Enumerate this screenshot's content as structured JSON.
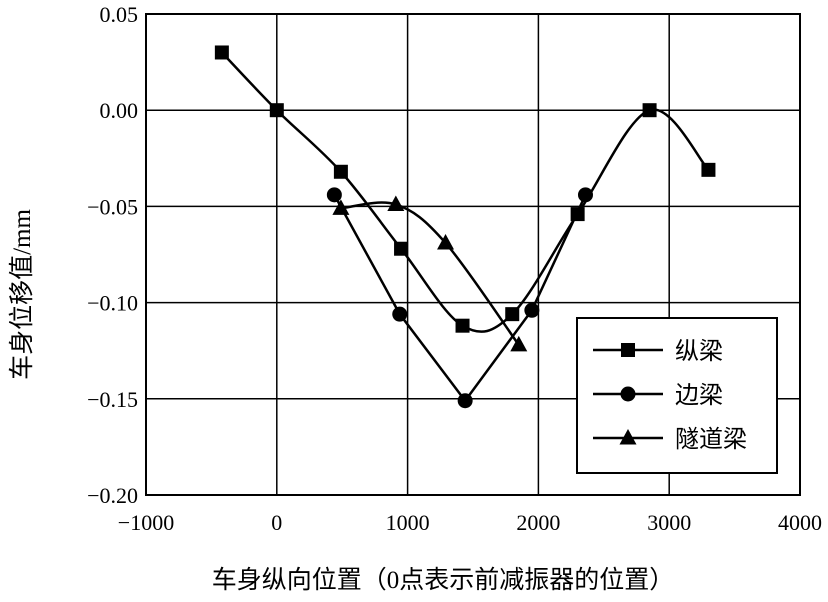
{
  "chart_data": {
    "type": "line",
    "title": "",
    "xlabel": "车身纵向位置（0点表示前减振器的位置）",
    "ylabel": "车身位移值/mm",
    "xlim": [
      -1000,
      4000
    ],
    "ylim": [
      -0.2,
      0.05
    ],
    "xticks": [
      -1000,
      0,
      1000,
      2000,
      3000,
      4000
    ],
    "yticks": [
      0.05,
      0.0,
      -0.05,
      -0.1,
      -0.15,
      -0.2
    ],
    "xtick_labels": [
      "−1000",
      "0",
      "1000",
      "2000",
      "3000",
      "4000"
    ],
    "ytick_labels": [
      "0.05",
      "0.00",
      "−0.05",
      "−0.10",
      "−0.15",
      "−0.20"
    ],
    "grid": true,
    "legend_position": "bottom-right",
    "series": [
      {
        "name": "纵梁",
        "marker": "square",
        "x": [
          -420,
          0,
          490,
          950,
          1420,
          1800,
          2300,
          2850,
          3300
        ],
        "y": [
          0.03,
          0.0,
          -0.032,
          -0.072,
          -0.112,
          -0.106,
          -0.054,
          0.0,
          -0.031
        ]
      },
      {
        "name": "边梁",
        "marker": "circle",
        "x": [
          440,
          940,
          1440,
          1950,
          2360
        ],
        "y": [
          -0.044,
          -0.106,
          -0.151,
          -0.104,
          -0.044
        ]
      },
      {
        "name": "隧道梁",
        "marker": "triangle",
        "x": [
          490,
          910,
          1290,
          1850
        ],
        "y": [
          -0.051,
          -0.049,
          -0.069,
          -0.122
        ]
      }
    ]
  }
}
